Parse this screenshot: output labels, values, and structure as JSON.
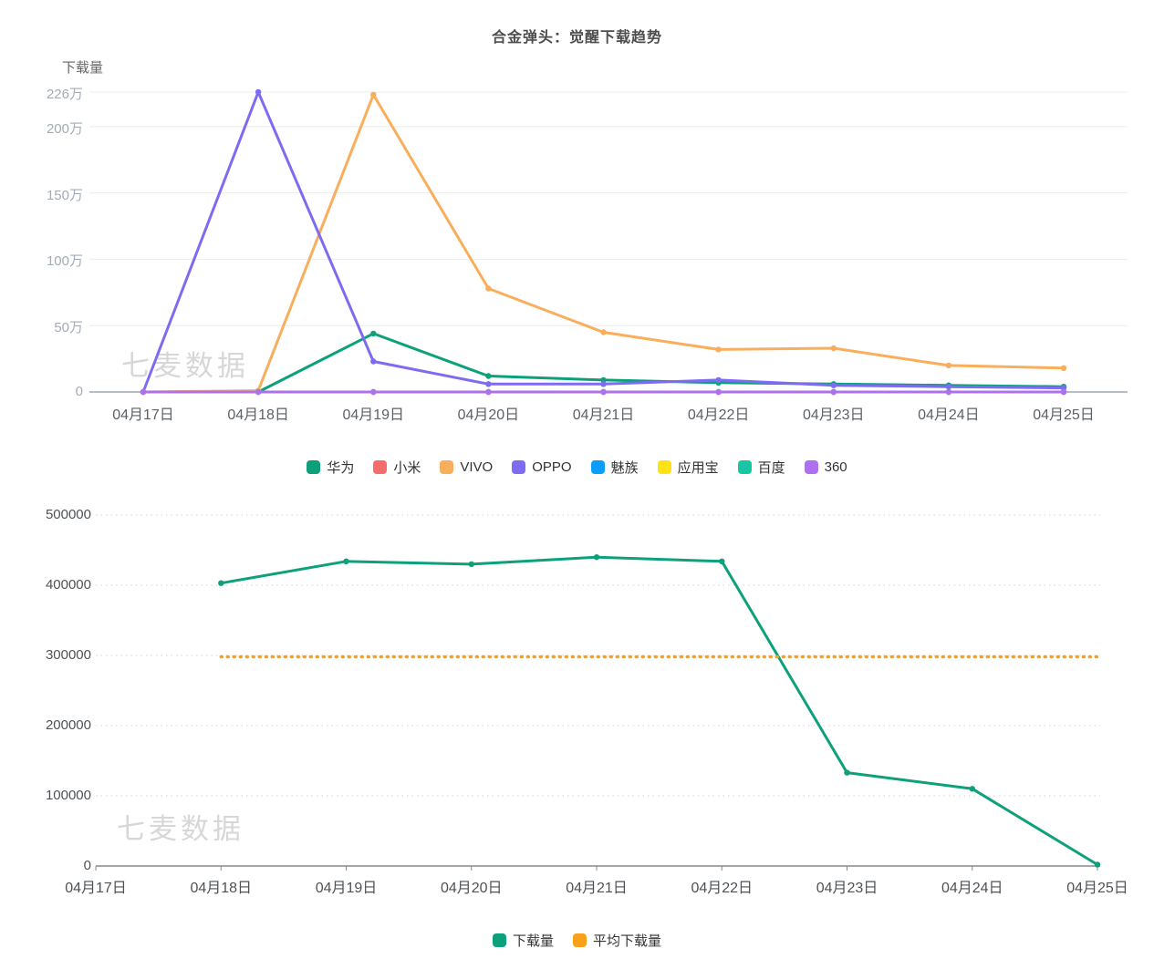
{
  "watermark_text": "七麦数据",
  "chart_data": [
    {
      "type": "line",
      "title": "合金弹头：觉醒下载趋势",
      "ylabel": "下载量",
      "unit": "万",
      "watermark": "七麦数据",
      "categories": [
        "04月17日",
        "04月18日",
        "04月19日",
        "04月20日",
        "04月21日",
        "04月22日",
        "04月23日",
        "04月24日",
        "04月25日"
      ],
      "yticks": [
        {
          "label": "0",
          "value": 0
        },
        {
          "label": "50万",
          "value": 50
        },
        {
          "label": "100万",
          "value": 100
        },
        {
          "label": "150万",
          "value": 150
        },
        {
          "label": "200万",
          "value": 200
        },
        {
          "label": "226万",
          "value": 226
        }
      ],
      "ylim": [
        0,
        226
      ],
      "grid": "solid",
      "legend_position": "bottom",
      "series": [
        {
          "name": "华为",
          "slug": "huawei",
          "color": "#0DA17B",
          "values": [
            null,
            0,
            44,
            12,
            9,
            7,
            6,
            5,
            4
          ]
        },
        {
          "name": "小米",
          "slug": "xiaomi",
          "color": "#F56C6C",
          "values": [
            0,
            0,
            0,
            0,
            0,
            0,
            0,
            0,
            0
          ]
        },
        {
          "name": "VIVO",
          "slug": "vivo",
          "color": "#F9AE5C",
          "values": [
            0,
            1,
            224,
            78,
            45,
            32,
            33,
            20,
            18
          ]
        },
        {
          "name": "OPPO",
          "slug": "oppo",
          "color": "#7D6CF1",
          "values": [
            0,
            226,
            23,
            6,
            6,
            9,
            5,
            4,
            3
          ]
        },
        {
          "name": "魅族",
          "slug": "meizu",
          "color": "#0B9DFB",
          "values": [
            0,
            0,
            0,
            0,
            0,
            0,
            0,
            0,
            0
          ]
        },
        {
          "name": "应用宝",
          "slug": "yingyongbao",
          "color": "#FCE216",
          "values": [
            0,
            0,
            0,
            0,
            0,
            0,
            0,
            0,
            0
          ]
        },
        {
          "name": "百度",
          "slug": "baidu",
          "color": "#18C5A5",
          "values": [
            0,
            0,
            0,
            0,
            0,
            0,
            0,
            0,
            0
          ]
        },
        {
          "name": "360",
          "slug": "360",
          "color": "#AF70F0",
          "values": [
            0,
            0,
            0,
            0,
            0,
            0,
            0,
            0,
            0
          ]
        }
      ]
    },
    {
      "type": "line",
      "title": "",
      "ylabel": "",
      "unit": "",
      "watermark": "七麦数据",
      "categories": [
        "04月17日",
        "04月18日",
        "04月19日",
        "04月20日",
        "04月21日",
        "04月22日",
        "04月23日",
        "04月24日",
        "04月25日"
      ],
      "yticks": [
        {
          "label": "0",
          "value": 0
        },
        {
          "label": "100000",
          "value": 100000
        },
        {
          "label": "200000",
          "value": 200000
        },
        {
          "label": "300000",
          "value": 300000
        },
        {
          "label": "400000",
          "value": 400000
        },
        {
          "label": "500000",
          "value": 500000
        }
      ],
      "ylim": [
        0,
        500000
      ],
      "grid": "dotted",
      "legend_position": "bottom",
      "series": [
        {
          "name": "下载量",
          "slug": "downloads",
          "color": "#0DA17B",
          "values": [
            null,
            403000,
            434000,
            430000,
            440000,
            434000,
            133000,
            110000,
            2000
          ]
        },
        {
          "name": "平均下载量",
          "slug": "avg-downloads",
          "color": "#F9A11B",
          "style": "dotted",
          "values": [
            null,
            298000,
            298000,
            298000,
            298000,
            298000,
            298000,
            298000,
            298000
          ]
        }
      ]
    }
  ]
}
